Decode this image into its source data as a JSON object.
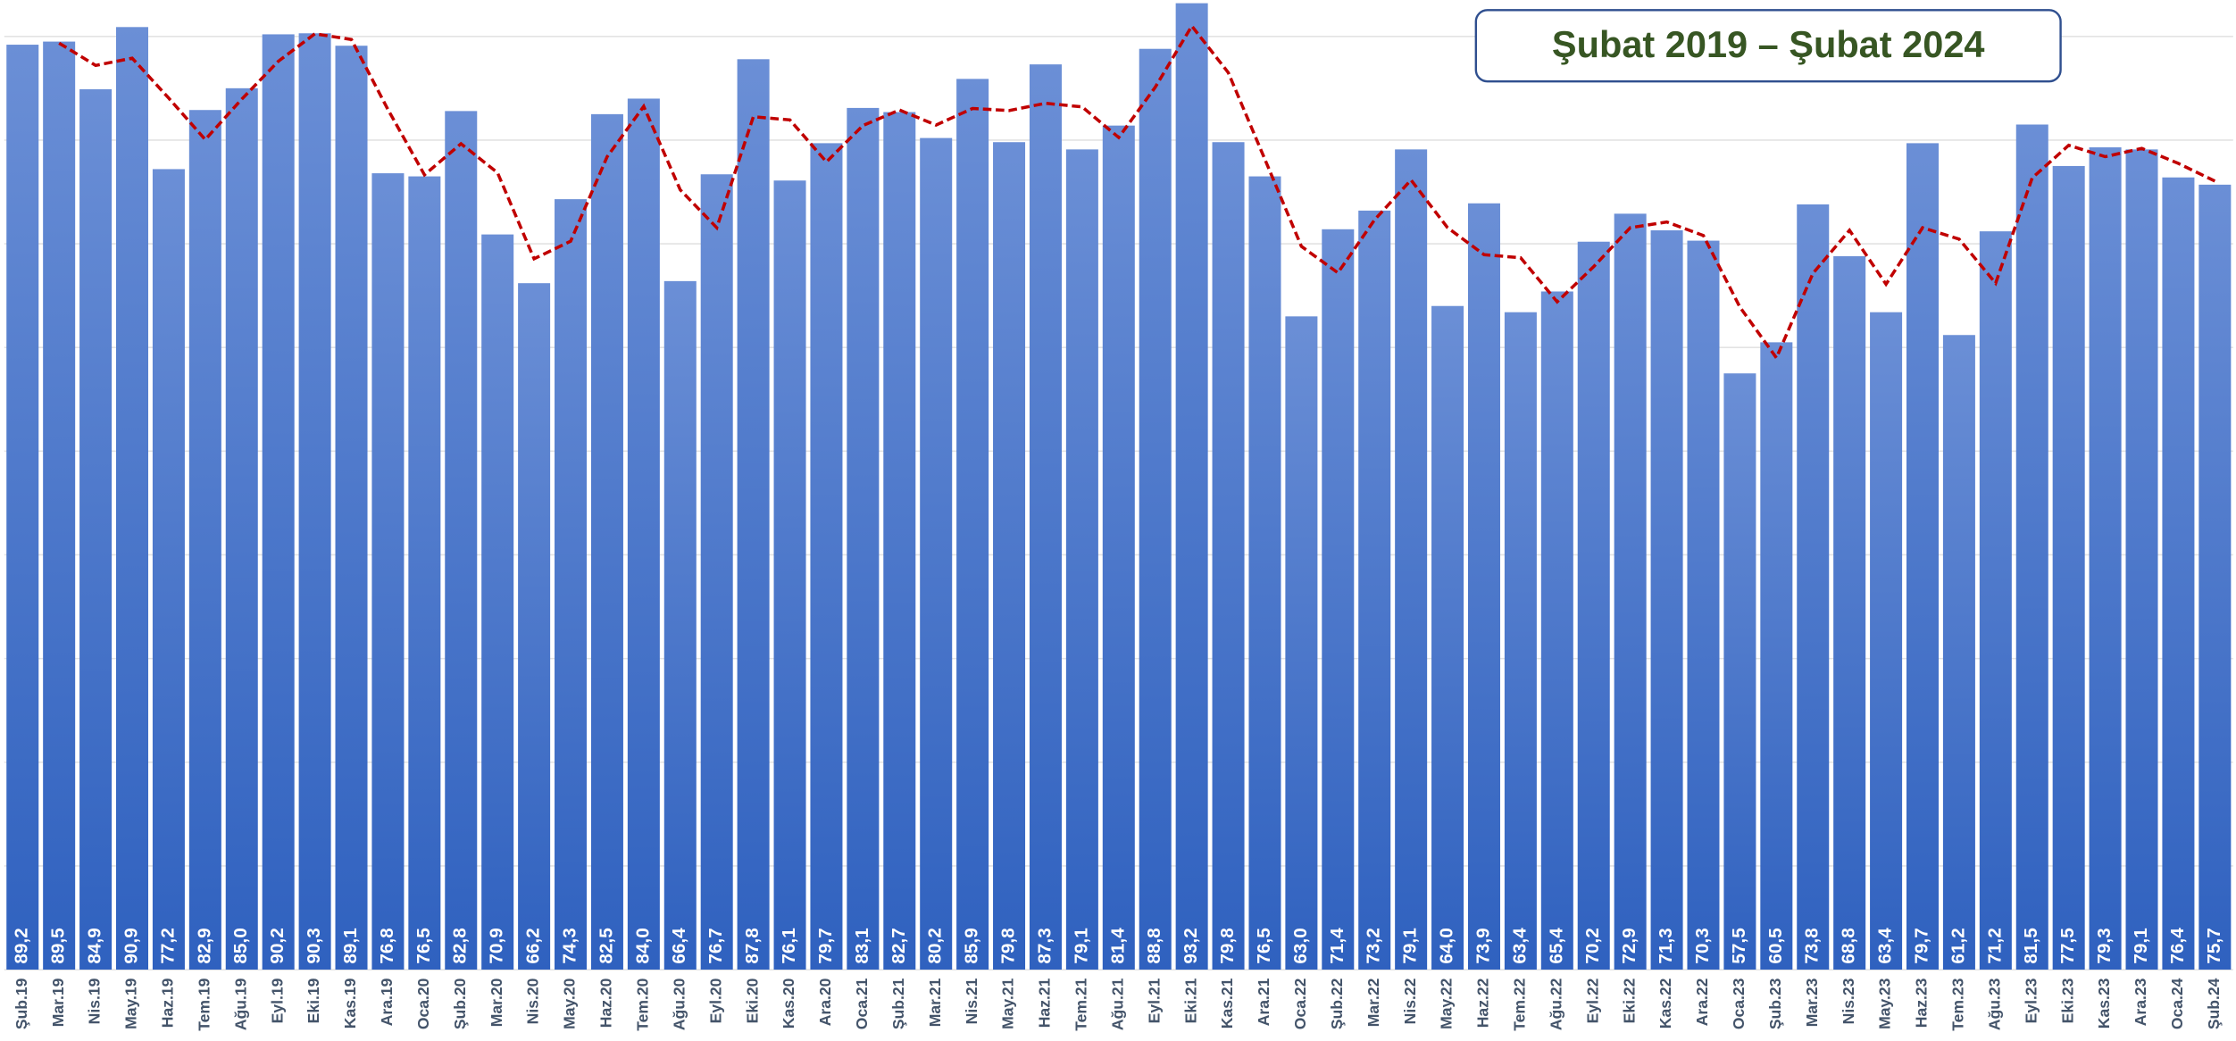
{
  "chart_data": {
    "type": "bar",
    "title": "Şubat 2019 – Şubat 2024",
    "categories": [
      "Şub.19",
      "Mar.19",
      "Nis.19",
      "May.19",
      "Haz.19",
      "Tem.19",
      "Ağu.19",
      "Eyl.19",
      "Eki.19",
      "Kas.19",
      "Ara.19",
      "Oca.20",
      "Şub.20",
      "Mar.20",
      "Nis.20",
      "May.20",
      "Haz.20",
      "Tem.20",
      "Ağu.20",
      "Eyl.20",
      "Eki.20",
      "Kas.20",
      "Ara.20",
      "Oca.21",
      "Şub.21",
      "Mar.21",
      "Nis.21",
      "May.21",
      "Haz.21",
      "Tem.21",
      "Ağu.21",
      "Eyl.21",
      "Eki.21",
      "Kas.21",
      "Ara.21",
      "Oca.22",
      "Şub.22",
      "Mar.22",
      "Nis.22",
      "May.22",
      "Haz.22",
      "Tem.22",
      "Ağu.22",
      "Eyl.22",
      "Eki.22",
      "Kas.22",
      "Ara.22",
      "Oca.23",
      "Şub.23",
      "Mar.23",
      "Nis.23",
      "May.23",
      "Haz.23",
      "Tem.23",
      "Ağu.23",
      "Eyl.23",
      "Eki.23",
      "Kas.23",
      "Ara.23",
      "Oca.24",
      "Şub.24"
    ],
    "values": [
      89.2,
      89.5,
      84.9,
      90.9,
      77.2,
      82.9,
      85.0,
      90.2,
      90.3,
      89.1,
      76.8,
      76.5,
      82.8,
      70.9,
      66.2,
      74.3,
      82.5,
      84.0,
      66.4,
      76.7,
      87.8,
      76.1,
      79.7,
      83.1,
      82.7,
      80.2,
      85.9,
      79.8,
      87.3,
      79.1,
      81.4,
      88.8,
      93.2,
      79.8,
      76.5,
      63.0,
      71.4,
      73.2,
      79.1,
      64.0,
      73.9,
      63.4,
      65.4,
      70.2,
      72.9,
      71.3,
      70.3,
      57.5,
      60.5,
      73.8,
      68.8,
      63.4,
      79.7,
      61.2,
      71.2,
      81.5,
      77.5,
      79.3,
      79.1,
      76.4,
      75.7
    ],
    "value_labels": [
      "89,2",
      "89,5",
      "84,9",
      "90,9",
      "77,2",
      "82,9",
      "85,0",
      "90,2",
      "90,3",
      "89,1",
      "76,8",
      "76,5",
      "82,8",
      "70,9",
      "66,2",
      "74,3",
      "82,5",
      "84,0",
      "66,4",
      "76,7",
      "87,8",
      "76,1",
      "79,7",
      "83,1",
      "82,7",
      "80,2",
      "85,9",
      "79,8",
      "87,3",
      "79,1",
      "81,4",
      "88,8",
      "93,2",
      "79,8",
      "76,5",
      "63,0",
      "71,4",
      "73,2",
      "79,1",
      "64,0",
      "73,9",
      "63,4",
      "65,4",
      "70,2",
      "72,9",
      "71,3",
      "70,3",
      "57,5",
      "60,5",
      "73,8",
      "68,8",
      "63,4",
      "79,7",
      "61,2",
      "71,2",
      "81,5",
      "77,5",
      "79,3",
      "79,1",
      "76,4",
      "75,7"
    ],
    "color": "#4472c4",
    "ylim": [
      0,
      93.5
    ],
    "yticks": [
      0,
      10,
      20,
      30,
      40,
      50,
      60,
      70,
      80,
      90
    ],
    "grid": true,
    "moving_average": {
      "color": "#c00000",
      "values": [
        null,
        89.35,
        87.2,
        87.9,
        84.05,
        80.05,
        83.95,
        87.6,
        90.25,
        89.7,
        82.95,
        76.65,
        79.65,
        76.85,
        68.55,
        70.25,
        78.4,
        83.25,
        75.2,
        71.55,
        82.25,
        81.95,
        77.9,
        81.4,
        82.9,
        81.45,
        83.05,
        82.85,
        83.55,
        83.2,
        80.25,
        85.1,
        91.0,
        86.5,
        78.15,
        69.75,
        67.2,
        72.3,
        76.15,
        71.55,
        68.95,
        68.65,
        64.4,
        67.8,
        71.55,
        72.1,
        70.8,
        63.9,
        59.0,
        67.15,
        71.3,
        66.1,
        71.55,
        70.45,
        66.2,
        76.35,
        79.5,
        78.4,
        79.2,
        77.75,
        76.05
      ]
    }
  }
}
